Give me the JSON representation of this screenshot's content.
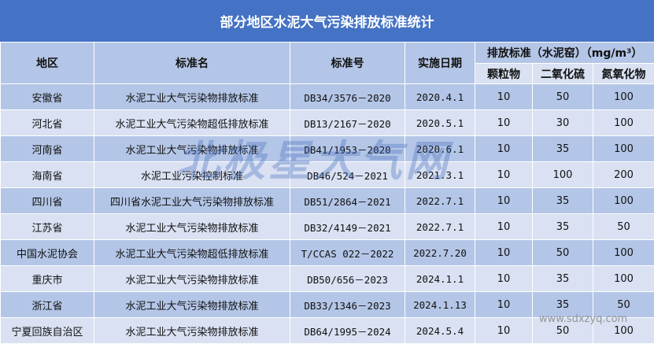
{
  "title": "部分地区水泥大气污染排放标准统计",
  "headers": {
    "region": "地区",
    "name": "标准名",
    "code": "标准号",
    "date": "实施日期",
    "limits": "排放标准（水泥窑）（mg/m³）",
    "pm": "颗粒物",
    "so2": "二氧化硫",
    "nox": "氮氧化物"
  },
  "rows": [
    {
      "region": "安徽省",
      "name": "水泥工业大气污染物排放标准",
      "code": "DB34/3576－2020",
      "date": "2020.4.1",
      "pm": "10",
      "so2": "50",
      "nox": "100"
    },
    {
      "region": "河北省",
      "name": "水泥工业大气污染物超低排放标准",
      "code": "DB13/2167－2020",
      "date": "2020.5.1",
      "pm": "10",
      "so2": "30",
      "nox": "100"
    },
    {
      "region": "河南省",
      "name": "水泥工业大气污染物排放标准",
      "code": "DB41/1953－2020",
      "date": "2020.6.1",
      "pm": "10",
      "so2": "35",
      "nox": "100"
    },
    {
      "region": "海南省",
      "name": "水泥工业污染控制标准",
      "code": "DB46/524－2021",
      "date": "2021.3.1",
      "pm": "10",
      "so2": "100",
      "nox": "200"
    },
    {
      "region": "四川省",
      "name": "四川省水泥工业大气污染物排放标准",
      "code": "DB51/2864－2021",
      "date": "2022.7.1",
      "pm": "10",
      "so2": "35",
      "nox": "100"
    },
    {
      "region": "江苏省",
      "name": "水泥工业大气污染物排放标准",
      "code": "DB32/4149－2021",
      "date": "2022.7.1",
      "pm": "10",
      "so2": "35",
      "nox": "50"
    },
    {
      "region": "中国水泥协会",
      "name": "水泥工业大气污染物超低排放标准",
      "code": "T/CCAS 022－2022",
      "date": "2022.7.20",
      "pm": "10",
      "so2": "50",
      "nox": "100"
    },
    {
      "region": "重庆市",
      "name": "水泥工业大气污染物排放标准",
      "code": "DB50/656－2023",
      "date": "2024.1.1",
      "pm": "10",
      "so2": "35",
      "nox": "100"
    },
    {
      "region": "浙江省",
      "name": "水泥工业大气污染物排放标准",
      "code": "DB33/1346－2023",
      "date": "2024.1.13",
      "pm": "10",
      "so2": "35",
      "nox": "50"
    },
    {
      "region": "宁夏回族自治区",
      "name": "水泥工业大气污染物排放标准",
      "code": "DB64/1995－2024",
      "date": "2024.5.4",
      "pm": "10",
      "so2": "50",
      "nox": "100"
    }
  ],
  "watermark": "北极星大气网",
  "watermark_url": "www.sdxzyq.com"
}
